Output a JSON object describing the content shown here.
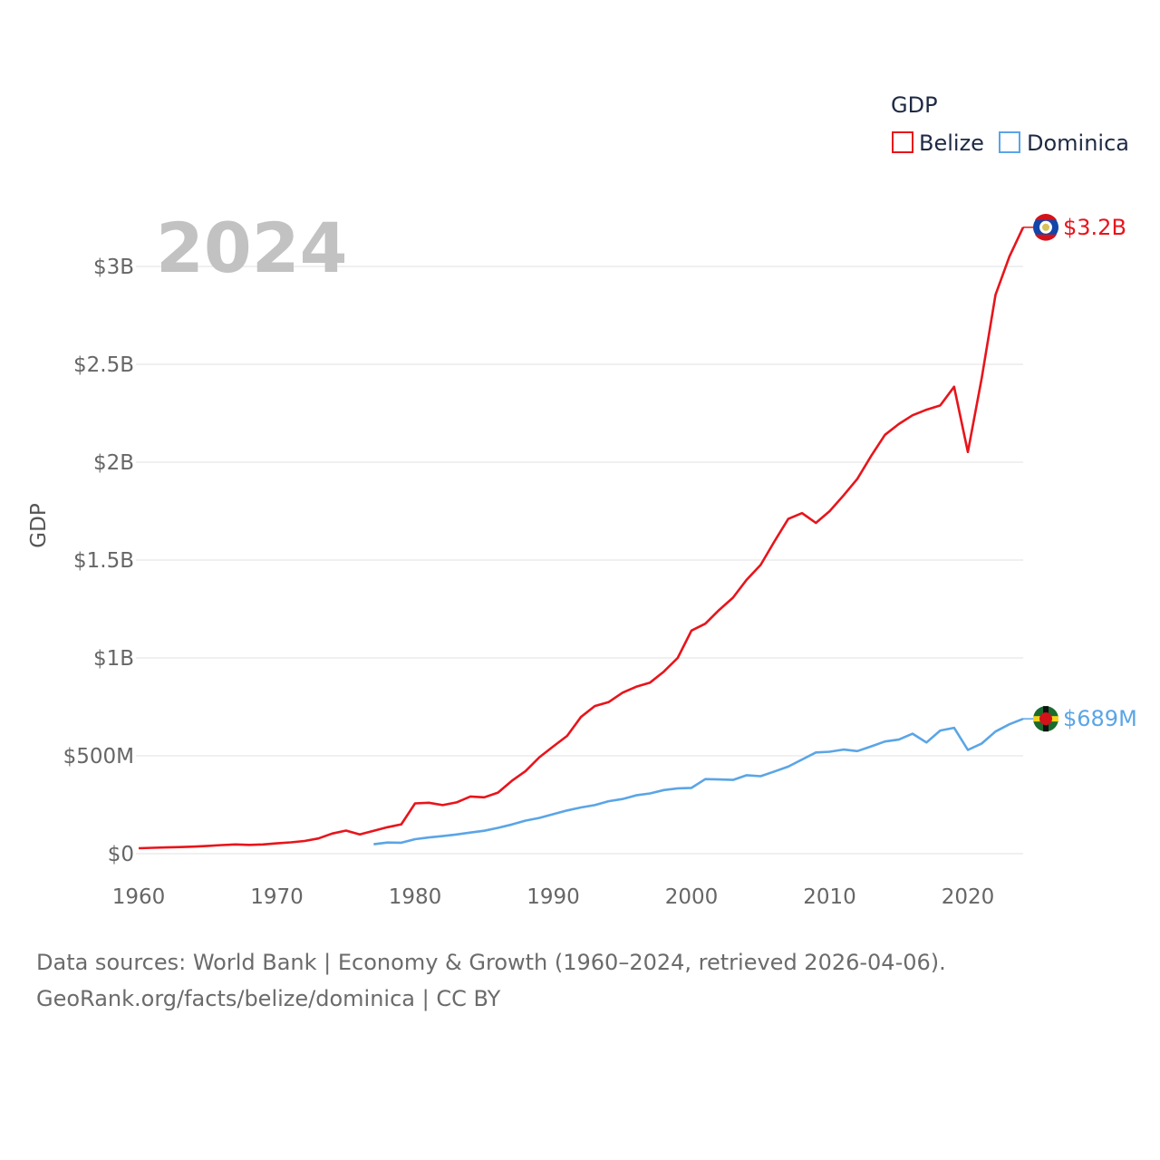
{
  "chart_data": {
    "type": "line",
    "title": "",
    "ylabel": "GDP",
    "xlabel": "",
    "year_label": "2024",
    "xlim": [
      1960,
      2024
    ],
    "ylim": [
      0,
      3300000000
    ],
    "x_ticks": [
      1960,
      1970,
      1980,
      1990,
      2000,
      2010,
      2020
    ],
    "x_tick_labels": [
      "1960",
      "1970",
      "1980",
      "1990",
      "2000",
      "2010",
      "2020"
    ],
    "y_ticks": [
      0,
      500000000,
      1000000000,
      1500000000,
      2000000000,
      2500000000,
      3000000000
    ],
    "y_tick_labels": [
      "$0",
      "$500M",
      "$1B",
      "$1.5B",
      "$2B",
      "$2.5B",
      "$3B"
    ],
    "grid": true,
    "legend": {
      "title": "GDP",
      "position": "top-right"
    },
    "series": [
      {
        "name": "Belize",
        "color": "#e8141b",
        "end_label": "$3.2B",
        "flag_icon": "belize-flag-icon",
        "x": [
          1960,
          1961,
          1962,
          1963,
          1964,
          1965,
          1966,
          1967,
          1968,
          1969,
          1970,
          1971,
          1972,
          1973,
          1974,
          1975,
          1976,
          1977,
          1978,
          1979,
          1980,
          1981,
          1982,
          1983,
          1984,
          1985,
          1986,
          1987,
          1988,
          1989,
          1990,
          1991,
          1992,
          1993,
          1994,
          1995,
          1996,
          1997,
          1998,
          1999,
          2000,
          2001,
          2002,
          2003,
          2004,
          2005,
          2006,
          2007,
          2008,
          2009,
          2010,
          2011,
          2012,
          2013,
          2014,
          2015,
          2016,
          2017,
          2018,
          2019,
          2020,
          2021,
          2022,
          2023,
          2024
        ],
        "values": [
          28000000,
          30000000,
          32000000,
          34000000,
          36000000,
          40000000,
          44000000,
          47000000,
          45000000,
          47000000,
          53000000,
          58000000,
          65000000,
          78000000,
          103000000,
          118000000,
          98000000,
          117000000,
          135000000,
          150000000,
          257000000,
          260000000,
          248000000,
          262000000,
          292000000,
          288000000,
          312000000,
          372000000,
          422000000,
          493000000,
          548000000,
          602000000,
          698000000,
          754000000,
          774000000,
          822000000,
          853000000,
          874000000,
          930000000,
          1000000000,
          1140000000,
          1175000000,
          1245000000,
          1308000000,
          1400000000,
          1475000000,
          1595000000,
          1710000000,
          1740000000,
          1690000000,
          1750000000,
          1830000000,
          1915000000,
          2032000000,
          2140000000,
          2195000000,
          2240000000,
          2268000000,
          2290000000,
          2385000000,
          2052000000,
          2430000000,
          2855000000,
          3050000000,
          3200000000
        ]
      },
      {
        "name": "Dominica",
        "color": "#5aa5e6",
        "end_label": "$689M",
        "flag_icon": "dominica-flag-icon",
        "x": [
          1977,
          1978,
          1979,
          1980,
          1981,
          1982,
          1983,
          1984,
          1985,
          1986,
          1987,
          1988,
          1989,
          1990,
          1991,
          1992,
          1993,
          1994,
          1995,
          1996,
          1997,
          1998,
          1999,
          2000,
          2001,
          2002,
          2003,
          2004,
          2005,
          2006,
          2007,
          2008,
          2009,
          2010,
          2011,
          2012,
          2013,
          2014,
          2015,
          2016,
          2017,
          2018,
          2019,
          2020,
          2021,
          2022,
          2023,
          2024
        ],
        "values": [
          48000000,
          57000000,
          56000000,
          74000000,
          83000000,
          90000000,
          98000000,
          108000000,
          117000000,
          132000000,
          149000000,
          169000000,
          183000000,
          202000000,
          221000000,
          236000000,
          248000000,
          268000000,
          279000000,
          298000000,
          308000000,
          325000000,
          334000000,
          336000000,
          381000000,
          379000000,
          377000000,
          401000000,
          396000000,
          420000000,
          445000000,
          481000000,
          517000000,
          521000000,
          532000000,
          524000000,
          548000000,
          573000000,
          583000000,
          613000000,
          568000000,
          629000000,
          643000000,
          530000000,
          563000000,
          624000000,
          661000000,
          689000000
        ]
      }
    ]
  },
  "footer": {
    "line1": "Data sources: World Bank | Economy & Growth (1960–2024, retrieved 2026-04-06).",
    "line2": "GeoRank.org/facts/belize/dominica | CC BY"
  }
}
